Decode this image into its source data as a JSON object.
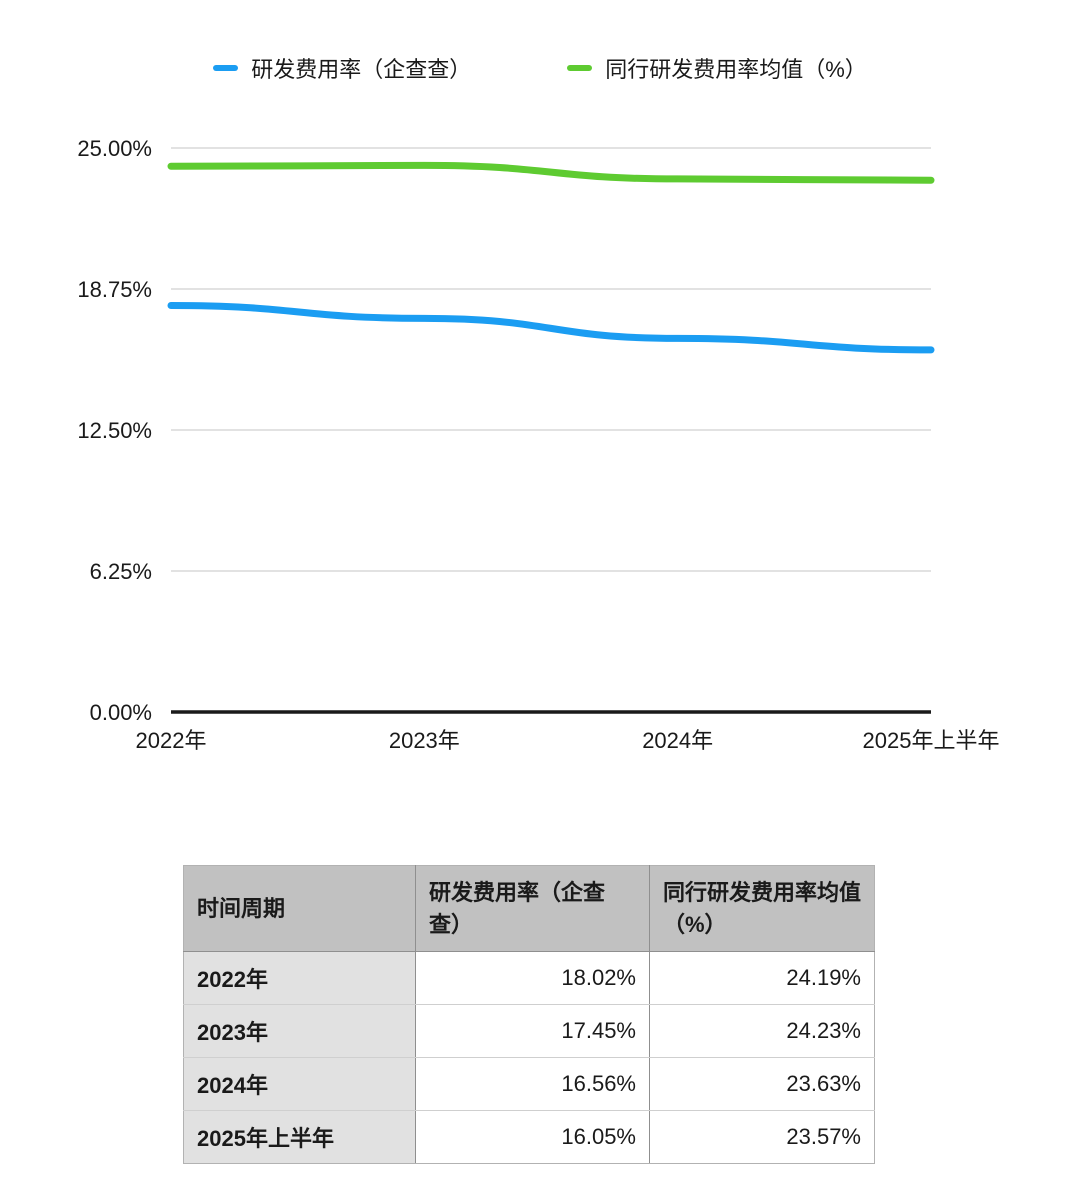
{
  "chart_data": {
    "type": "line",
    "categories": [
      "2022年",
      "2023年",
      "2024年",
      "2025年上半年"
    ],
    "series": [
      {
        "name": "研发费用率（企查查）",
        "color": "#1b9df2",
        "values": [
          18.02,
          17.45,
          16.56,
          16.05
        ]
      },
      {
        "name": "同行研发费用率均值（%）",
        "color": "#5ecb31",
        "values": [
          24.19,
          24.23,
          23.63,
          23.57
        ]
      }
    ],
    "title": "",
    "xlabel": "",
    "ylabel": "",
    "ylim": [
      0,
      25
    ],
    "yticks": [
      {
        "value": 25.0,
        "label": "25.00%"
      },
      {
        "value": 18.75,
        "label": "18.75%"
      },
      {
        "value": 12.5,
        "label": "12.50%"
      },
      {
        "value": 6.25,
        "label": "6.25%"
      },
      {
        "value": 0.0,
        "label": "0.00%"
      }
    ],
    "grid": true,
    "legend_position": "top"
  },
  "table": {
    "headers": [
      "时间周期",
      "研发费用率（企查查）",
      "同行研发费用率均值（%）"
    ],
    "rows": [
      {
        "period": "2022年",
        "values": [
          "18.02%",
          "24.19%"
        ]
      },
      {
        "period": "2023年",
        "values": [
          "17.45%",
          "24.23%"
        ]
      },
      {
        "period": "2024年",
        "values": [
          "16.56%",
          "23.63%"
        ]
      },
      {
        "period": "2025年上半年",
        "values": [
          "16.05%",
          "23.57%"
        ]
      }
    ]
  }
}
